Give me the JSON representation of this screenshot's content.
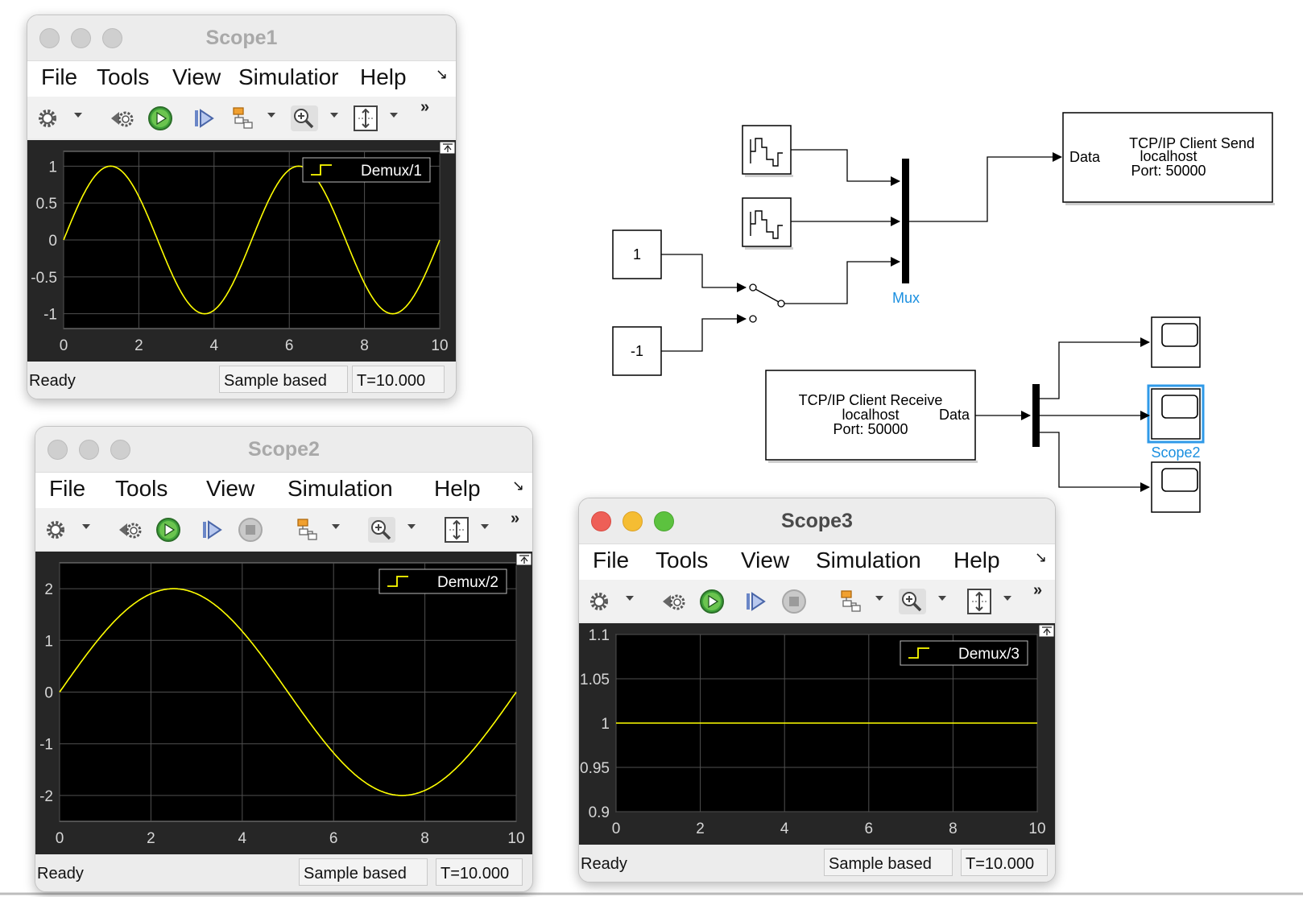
{
  "menus": [
    "File",
    "Tools",
    "View",
    "Simulation",
    "Help"
  ],
  "scopes": [
    {
      "title": "Scope1",
      "menus": [
        "File",
        "Tools",
        "View",
        "Simulatior",
        "Help"
      ],
      "legend": "Demux/1",
      "status": {
        "ready": "Ready",
        "mode": "Sample based",
        "time": "T=10.000"
      },
      "chart_data": {
        "type": "line",
        "series": [
          {
            "name": "Demux/1",
            "function": "sin(t*2*pi/5)",
            "amplitude": 1,
            "period": 5,
            "color": "#ffff00"
          }
        ],
        "xlim": [
          0,
          10
        ],
        "ylim": [
          -1.2,
          1.2
        ],
        "xticks": [
          "0",
          "2",
          "4",
          "6",
          "8",
          "10"
        ],
        "yticks": [
          "1",
          "0.5",
          "0",
          "-0.5",
          "-1"
        ],
        "grid": true,
        "legend_position": "top-right"
      }
    },
    {
      "title": "Scope2",
      "menus": [
        "File",
        "Tools",
        "View",
        "Simulation",
        "Help"
      ],
      "legend": "Demux/2",
      "status": {
        "ready": "Ready",
        "mode": "Sample based",
        "time": "T=10.000"
      },
      "chart_data": {
        "type": "line",
        "series": [
          {
            "name": "Demux/2",
            "function": "2*sin(t*2*pi/10)",
            "amplitude": 2,
            "period": 10,
            "color": "#ffff00"
          }
        ],
        "xlim": [
          0,
          10
        ],
        "ylim": [
          -2.5,
          2.5
        ],
        "xticks": [
          "0",
          "2",
          "4",
          "6",
          "8",
          "10"
        ],
        "yticks": [
          "2",
          "1",
          "0",
          "-1",
          "-2"
        ],
        "grid": true,
        "legend_position": "top-right"
      }
    },
    {
      "title": "Scope3",
      "menus": [
        "File",
        "Tools",
        "View",
        "Simulation",
        "Help"
      ],
      "legend": "Demux/3",
      "status": {
        "ready": "Ready",
        "mode": "Sample based",
        "time": "T=10.000"
      },
      "chart_data": {
        "type": "line",
        "series": [
          {
            "name": "Demux/3",
            "x": [
              0,
              10
            ],
            "y": [
              1,
              1
            ],
            "color": "#ffff00"
          }
        ],
        "xlim": [
          0,
          10
        ],
        "ylim": [
          0.9,
          1.1
        ],
        "xticks": [
          "0",
          "2",
          "4",
          "6",
          "8",
          "10"
        ],
        "yticks": [
          "1.1",
          "1.05",
          "1",
          "0.95",
          "0.9"
        ],
        "grid": true,
        "legend_position": "top-right"
      }
    }
  ],
  "diagram": {
    "const1": "1",
    "const2": "-1",
    "mux_label": "Mux",
    "scope2_label": "Scope2",
    "send_block": {
      "title": "TCP/IP Client Send",
      "port_in": "Data",
      "host": "localhost",
      "port": "Port: 50000"
    },
    "receive_block": {
      "title": "TCP/IP Client Receive",
      "port_out": "Data",
      "host": "localhost",
      "port": "Port: 50000"
    }
  },
  "colors": {
    "signal": "#ffff00",
    "plot_bg": "#000000",
    "frame": "#262626",
    "selection": "#2f9ae8",
    "label_blue": "#1a8fe0"
  }
}
